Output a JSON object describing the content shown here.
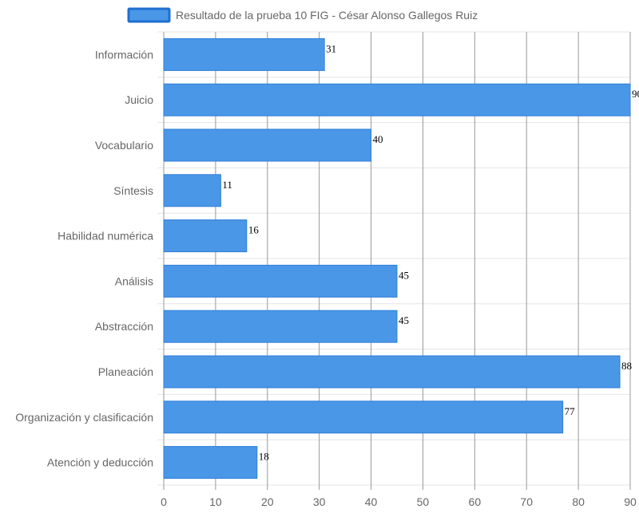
{
  "chart_data": {
    "type": "bar",
    "orientation": "horizontal",
    "categories": [
      "Información",
      "Juicio",
      "Vocabulario",
      "Síntesis",
      "Habilidad numérica",
      "Análisis",
      "Abstracción",
      "Planeación",
      "Organización y clasificación",
      "Atención y deducción"
    ],
    "series": [
      {
        "name": "Resultado de la prueba 10 FIG - César Alonso Gallegos Ruiz",
        "values": [
          31,
          90,
          40,
          11,
          16,
          45,
          45,
          88,
          77,
          18
        ]
      }
    ],
    "xlim": [
      0,
      90
    ],
    "xticks": [
      0,
      10,
      20,
      30,
      40,
      50,
      60,
      70,
      80,
      90
    ],
    "grid": true,
    "legend_position": "top",
    "colors": {
      "bar_fill": "#4a97e8",
      "bar_stroke": "#2f7ed8",
      "legend_fill": "#4a97e8",
      "legend_stroke": "#1f6fd1"
    }
  }
}
